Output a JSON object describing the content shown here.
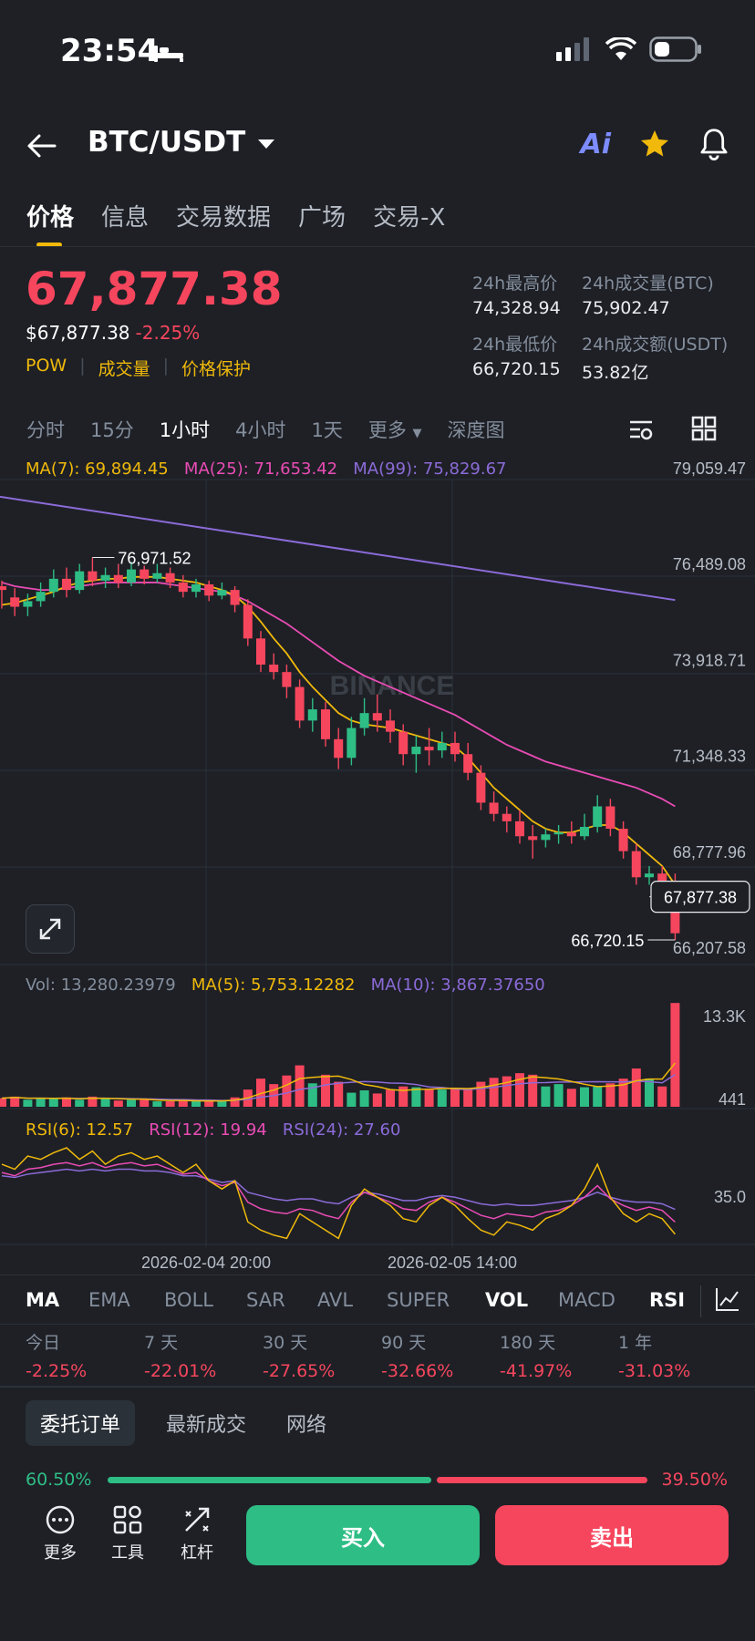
{
  "status": {
    "time": "23:54"
  },
  "header": {
    "pair": "BTC/USDT"
  },
  "tabs": [
    "价格",
    "信息",
    "交易数据",
    "广场",
    "交易-X"
  ],
  "ticker": {
    "price": "67,877.38",
    "usd_price": "$67,877.38",
    "change": "-2.25%",
    "tags": [
      "POW",
      "成交量",
      "价格保护"
    ],
    "high_label": "24h最高价",
    "high": "74,328.94",
    "low_label": "24h最低价",
    "low": "66,720.15",
    "vol_btc_label": "24h成交量(BTC)",
    "vol_btc": "75,902.47",
    "vol_usdt_label": "24h成交额(USDT)",
    "vol_usdt": "53.82亿"
  },
  "intervals": [
    "分时",
    "15分",
    "1小时",
    "4小时",
    "1天",
    "更多",
    "深度图"
  ],
  "ma_legend": {
    "ma7": "MA(7): 69,894.45",
    "ma25": "MA(25): 71,653.42",
    "ma99": "MA(99): 75,829.67"
  },
  "vol_legend": {
    "vol": "Vol: 13,280.23979",
    "ma5": "MA(5): 5,753.12282",
    "ma10": "MA(10): 3,867.37650"
  },
  "rsi_legend": {
    "rsi6": "RSI(6): 12.57",
    "rsi12": "RSI(12): 19.94",
    "rsi24": "RSI(24): 27.60"
  },
  "watermark": "BINANCE",
  "chart_data": {
    "type": "candlestick",
    "y_ticks": [
      "79,059.47",
      "76,489.08",
      "73,918.71",
      "71,348.33",
      "68,777.96",
      "66,207.58"
    ],
    "ylim": [
      66207.58,
      79059.47
    ],
    "current_price": "67,877.38",
    "high_marker": "76,971.52",
    "low_marker": "66,720.15",
    "x_ticks": [
      "2026-02-04 20:00",
      "2026-02-05 14:00"
    ],
    "vol_ticks": [
      "13.3K",
      "441"
    ],
    "rsi_ticks": [
      "35.0"
    ],
    "colors": {
      "up": "#2ebd85",
      "down": "#f6465d",
      "ma7": "#f0b90b",
      "ma25": "#e94cb4",
      "ma99": "#8c6bd8"
    },
    "candles": [
      [
        76200,
        76100,
        76350,
        75600
      ],
      [
        75900,
        75650,
        76150,
        75400
      ],
      [
        75650,
        75800,
        76000,
        75400
      ],
      [
        75800,
        76050,
        76300,
        75650
      ],
      [
        76050,
        76400,
        76650,
        75900
      ],
      [
        76400,
        76100,
        76700,
        75900
      ],
      [
        76100,
        76600,
        76800,
        76000
      ],
      [
        76600,
        76350,
        76971.52,
        76200
      ],
      [
        76350,
        76500,
        76700,
        76150
      ],
      [
        76500,
        76300,
        76800,
        76150
      ],
      [
        76300,
        76650,
        76850,
        76200
      ],
      [
        76650,
        76400,
        76750,
        76250
      ],
      [
        76400,
        76550,
        76800,
        76300
      ],
      [
        76550,
        76300,
        76700,
        76150
      ],
      [
        76300,
        76050,
        76500,
        75900
      ],
      [
        76050,
        76250,
        76400,
        75900
      ],
      [
        76250,
        75950,
        76350,
        75800
      ],
      [
        75950,
        76100,
        76300,
        75850
      ],
      [
        76100,
        75700,
        76200,
        75500
      ],
      [
        75700,
        74800,
        75850,
        74600
      ],
      [
        74800,
        74100,
        75000,
        73900
      ],
      [
        74100,
        73900,
        74400,
        73700
      ],
      [
        73900,
        73500,
        74100,
        73200
      ],
      [
        73500,
        72600,
        73700,
        72400
      ],
      [
        72600,
        72900,
        73200,
        72300
      ],
      [
        72900,
        72100,
        73100,
        71900
      ],
      [
        72100,
        71600,
        72400,
        71300
      ],
      [
        71600,
        72400,
        72700,
        71400
      ],
      [
        72400,
        72800,
        73200,
        72200
      ],
      [
        72800,
        72600,
        73300,
        72300
      ],
      [
        72600,
        72300,
        72900,
        72000
      ],
      [
        72300,
        71700,
        72500,
        71400
      ],
      [
        71700,
        71900,
        72200,
        71200
      ],
      [
        71900,
        71800,
        72400,
        71400
      ],
      [
        71800,
        72000,
        72300,
        71600
      ],
      [
        72000,
        71700,
        72300,
        71500
      ],
      [
        71700,
        71200,
        72000,
        71000
      ],
      [
        71200,
        70400,
        71400,
        70200
      ],
      [
        70400,
        70100,
        70700,
        69900
      ],
      [
        70100,
        69900,
        70300,
        69600
      ],
      [
        69900,
        69500,
        70200,
        69300
      ],
      [
        69500,
        69400,
        69800,
        68900
      ],
      [
        69400,
        69550,
        69700,
        69200
      ],
      [
        69550,
        69600,
        69800,
        69300
      ],
      [
        69600,
        69500,
        69900,
        69300
      ],
      [
        69500,
        69750,
        70100,
        69400
      ],
      [
        69750,
        70300,
        70600,
        69600
      ],
      [
        70300,
        69700,
        70500,
        69500
      ],
      [
        69700,
        69100,
        69900,
        68900
      ],
      [
        69100,
        68400,
        69300,
        68200
      ],
      [
        68400,
        68500,
        68700,
        68200
      ],
      [
        68500,
        68200,
        68700,
        68000
      ],
      [
        68200,
        66900,
        68500,
        66720.15
      ]
    ],
    "volumes": [
      1100,
      1300,
      900,
      1100,
      1000,
      1200,
      900,
      1300,
      1000,
      800,
      900,
      900,
      700,
      700,
      800,
      700,
      800,
      700,
      1200,
      2200,
      3600,
      2900,
      4000,
      5300,
      3000,
      4100,
      3200,
      1800,
      2100,
      1700,
      2200,
      2600,
      2500,
      2200,
      2200,
      2300,
      2400,
      3200,
      3700,
      3900,
      4300,
      4100,
      2600,
      2900,
      2300,
      2500,
      2600,
      3000,
      3600,
      4900,
      3600,
      2600,
      13280
    ],
    "ma7": [
      75700,
      75750,
      75850,
      75950,
      76050,
      76200,
      76300,
      76350,
      76400,
      76400,
      76450,
      76450,
      76450,
      76400,
      76350,
      76300,
      76200,
      76100,
      75950,
      75650,
      75250,
      74800,
      74400,
      73900,
      73500,
      73150,
      72800,
      72600,
      72500,
      72450,
      72400,
      72300,
      72200,
      72100,
      72000,
      71900,
      71600,
      71200,
      70800,
      70500,
      70200,
      69900,
      69700,
      69600,
      69600,
      69700,
      69800,
      69800,
      69600,
      69300,
      69000,
      68700,
      68200
    ],
    "ma25": [
      76300,
      76200,
      76150,
      76100,
      76100,
      76150,
      76200,
      76250,
      76300,
      76300,
      76300,
      76300,
      76300,
      76250,
      76200,
      76150,
      76100,
      76050,
      75950,
      75800,
      75600,
      75400,
      75200,
      74950,
      74700,
      74450,
      74200,
      74000,
      73800,
      73650,
      73500,
      73350,
      73200,
      73050,
      72900,
      72750,
      72550,
      72350,
      72150,
      71950,
      71800,
      71650,
      71500,
      71400,
      71300,
      71200,
      71100,
      71000,
      70900,
      70800,
      70650,
      70500,
      70300
    ],
    "ma99_endpoints": [
      78600,
      75829.67
    ],
    "rsi6": [
      55,
      52,
      60,
      58,
      62,
      65,
      58,
      63,
      55,
      60,
      62,
      58,
      60,
      55,
      50,
      55,
      45,
      40,
      45,
      20,
      15,
      12,
      10,
      25,
      20,
      15,
      10,
      30,
      40,
      35,
      30,
      22,
      20,
      30,
      35,
      30,
      22,
      15,
      12,
      20,
      18,
      15,
      22,
      25,
      30,
      40,
      55,
      35,
      25,
      20,
      25,
      22,
      12.57
    ],
    "rsi12": [
      50,
      48,
      52,
      53,
      55,
      56,
      54,
      56,
      53,
      55,
      56,
      54,
      55,
      52,
      49,
      50,
      45,
      42,
      44,
      32,
      28,
      26,
      25,
      28,
      27,
      24,
      22,
      32,
      38,
      35,
      32,
      28,
      27,
      32,
      35,
      32,
      28,
      24,
      22,
      25,
      24,
      23,
      26,
      27,
      30,
      35,
      42,
      34,
      30,
      27,
      29,
      27,
      19.94
    ],
    "rsi24": [
      48,
      47,
      49,
      50,
      51,
      52,
      51,
      52,
      51,
      52,
      52,
      51,
      51,
      50,
      48,
      48,
      46,
      44,
      45,
      38,
      36,
      34,
      33,
      34,
      34,
      32,
      31,
      35,
      38,
      37,
      35,
      33,
      33,
      35,
      36,
      35,
      33,
      31,
      30,
      31,
      30,
      30,
      31,
      32,
      33,
      35,
      38,
      35,
      33,
      32,
      32,
      31,
      27.6
    ]
  },
  "indicators": [
    "MA",
    "EMA",
    "BOLL",
    "SAR",
    "AVL",
    "SUPER",
    "VOL",
    "MACD",
    "RSI"
  ],
  "performance": [
    {
      "label": "今日",
      "value": "-2.25%"
    },
    {
      "label": "7 天",
      "value": "-22.01%"
    },
    {
      "label": "30 天",
      "value": "-27.65%"
    },
    {
      "label": "90 天",
      "value": "-32.66%"
    },
    {
      "label": "180 天",
      "value": "-41.97%"
    },
    {
      "label": "1 年",
      "value": "-31.03%"
    }
  ],
  "order_tabs": [
    "委托订单",
    "最新成交",
    "网络"
  ],
  "ratio": {
    "buy": "60.50%",
    "sell": "39.50%",
    "buy_fraction": 0.605
  },
  "bottom": {
    "more": "更多",
    "tools": "工具",
    "leverage": "杠杆",
    "buy": "买入",
    "sell": "卖出"
  }
}
